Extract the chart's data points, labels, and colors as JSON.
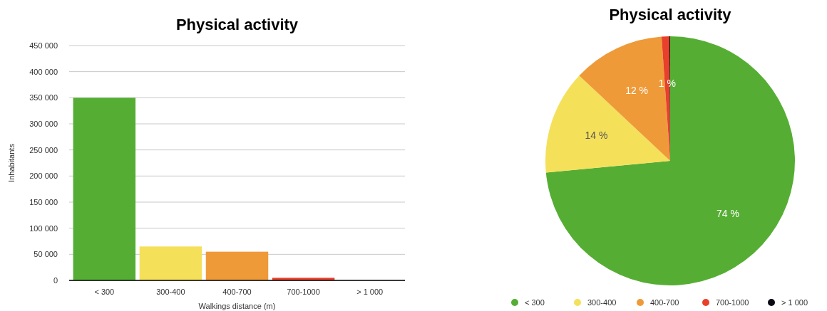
{
  "chart_data": [
    {
      "type": "bar",
      "title": "Physical activity",
      "xlabel": "Walkings distance (m)",
      "ylabel": "Inhabitants",
      "categories": [
        "< 300",
        "300-400",
        "400-700",
        "700-1000",
        "> 1 000"
      ],
      "values": [
        350000,
        65000,
        55000,
        5000,
        null
      ],
      "colors": [
        "#55ae33",
        "#f5e05a",
        "#ef9a38",
        "#e8402a",
        null
      ],
      "ylim": [
        0,
        450000
      ],
      "yticks": [
        0,
        {
          "value": 50000,
          "label": "50 000"
        },
        {
          "value": 100000,
          "label": "100 000"
        },
        {
          "value": 150000,
          "label": "150 000"
        },
        {
          "value": 200000,
          "label": "200 000"
        },
        {
          "value": 250000,
          "label": "250 000"
        },
        {
          "value": 300000,
          "label": "300 000"
        },
        {
          "value": 350000,
          "label": "350 000"
        },
        {
          "value": 400000,
          "label": "400 000"
        },
        {
          "value": 450000,
          "label": "450 000"
        }
      ],
      "grid": "y"
    },
    {
      "type": "pie",
      "title": "Physical activity",
      "categories": [
        "< 300",
        "300-400",
        "400-700",
        "700-1000",
        "> 1 000"
      ],
      "values": [
        73.5,
        13.5,
        11.9,
        1,
        0.1
      ],
      "value_labels": [
        "74 %",
        "14 %",
        "12 %",
        "1 %",
        null
      ],
      "colors": [
        "#55ae33",
        "#f5e05a",
        "#ef9a38",
        "#e8402a",
        "#0a0a14"
      ],
      "legend": "bottom"
    }
  ]
}
